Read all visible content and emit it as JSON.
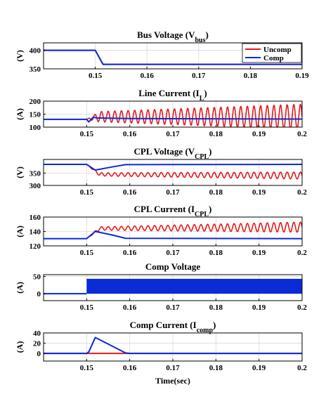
{
  "colors": {
    "uncomp": "#e31a1c",
    "comp": "#0a2bd6",
    "grid": "#d9d9d9",
    "axis": "#000000"
  },
  "xlabel": "Time(sec)",
  "legend": {
    "uncomp": "Uncomp",
    "comp": "Comp",
    "position": "top-right"
  },
  "chart_data": [
    {
      "type": "line",
      "title": "Bus Voltage (V",
      "title_sub": "bus",
      "title_end": ")",
      "ylabel": "(V)",
      "xlim": [
        0.14,
        0.19
      ],
      "ylim": [
        350,
        420
      ],
      "xticks": [
        "0.15",
        "0.16",
        "0.17",
        "0.18",
        "0.19"
      ],
      "xtick_values": [
        0.15,
        0.16,
        0.17,
        0.18,
        0.19
      ],
      "yticks": [
        "350",
        "400"
      ],
      "ytick_values": [
        350,
        400
      ],
      "grid": true,
      "legend": true,
      "series": [
        {
          "name": "Uncomp",
          "color": "uncomp",
          "points": [
            [
              0.14,
              400
            ],
            [
              0.15,
              400
            ],
            [
              0.1515,
              362
            ],
            [
              0.19,
              362
            ]
          ]
        },
        {
          "name": "Comp",
          "color": "comp",
          "points": [
            [
              0.14,
              400
            ],
            [
              0.15,
              400
            ],
            [
              0.1515,
              362
            ],
            [
              0.19,
              362
            ]
          ]
        }
      ]
    },
    {
      "type": "line",
      "title": "Line Current (I",
      "title_sub": "L",
      "title_end": ")",
      "ylabel": "(A)",
      "xlim": [
        0.14,
        0.2
      ],
      "ylim": [
        100,
        200
      ],
      "xticks": [
        "0.15",
        "0.16",
        "0.17",
        "0.18",
        "0.19",
        "0.2"
      ],
      "xtick_values": [
        0.15,
        0.16,
        0.17,
        0.18,
        0.19,
        0.2
      ],
      "yticks": [
        "100",
        "150",
        "200"
      ],
      "ytick_values": [
        100,
        150,
        200
      ],
      "grid": true,
      "series": [
        {
          "name": "Uncomp",
          "color": "uncomp",
          "osc": {
            "t0": 0.15,
            "steady": 130,
            "center_start": 140,
            "center_end": 140,
            "amp_start": 18,
            "amp_end": 48,
            "freq": 650
          }
        },
        {
          "name": "Comp",
          "color": "comp",
          "points": [
            [
              0.14,
              130
            ],
            [
              0.15,
              130
            ],
            [
              0.1505,
              120
            ],
            [
              0.1515,
              138
            ],
            [
              0.1525,
              135
            ],
            [
              0.16,
              133
            ],
            [
              0.2,
              131
            ]
          ]
        }
      ]
    },
    {
      "type": "line",
      "title": "CPL Voltage (V",
      "title_sub": "CPL",
      "title_end": ")",
      "ylabel": "(V)",
      "xlim": [
        0.14,
        0.2
      ],
      "ylim": [
        300,
        405
      ],
      "xticks": [
        "0.15",
        "0.16",
        "0.17",
        "0.18",
        "0.19",
        "0.2"
      ],
      "xtick_values": [
        0.15,
        0.16,
        0.17,
        0.18,
        0.19,
        0.2
      ],
      "yticks": [
        "300",
        "350"
      ],
      "ytick_values": [
        300,
        350
      ],
      "grid": true,
      "series": [
        {
          "name": "Uncomp",
          "color": "uncomp",
          "osc": {
            "t0": 0.15,
            "steady": 385,
            "center_start": 345,
            "center_end": 340,
            "amp_start": 6,
            "amp_end": 14,
            "freq": 650
          }
        },
        {
          "name": "Comp",
          "color": "comp",
          "points": [
            [
              0.14,
              385
            ],
            [
              0.15,
              385
            ],
            [
              0.152,
              362
            ],
            [
              0.156,
              375
            ],
            [
              0.159,
              384
            ],
            [
              0.2,
              385
            ]
          ]
        }
      ]
    },
    {
      "type": "line",
      "title": "CPL Current (I",
      "title_sub": "CPL",
      "title_end": ")",
      "ylabel": "(A)",
      "xlim": [
        0.14,
        0.2
      ],
      "ylim": [
        120,
        160
      ],
      "xticks": [
        "0.15",
        "0.16",
        "0.17",
        "0.18",
        "0.19",
        "0.2"
      ],
      "xtick_values": [
        0.15,
        0.16,
        0.17,
        0.18,
        0.19,
        0.2
      ],
      "yticks": [
        "120",
        "140",
        "160"
      ],
      "ytick_values": [
        120,
        140,
        160
      ],
      "grid": true,
      "series": [
        {
          "name": "Uncomp",
          "color": "uncomp",
          "osc": {
            "t0": 0.15,
            "steady": 130,
            "center_start": 144,
            "center_end": 146,
            "amp_start": 2,
            "amp_end": 7,
            "freq": 650
          }
        },
        {
          "name": "Comp",
          "color": "comp",
          "points": [
            [
              0.14,
              130
            ],
            [
              0.15,
              130
            ],
            [
              0.152,
              140
            ],
            [
              0.156,
              135
            ],
            [
              0.159,
              130.5
            ],
            [
              0.2,
              130
            ]
          ]
        }
      ]
    },
    {
      "type": "line",
      "title": "Comp Voltage",
      "title_sub": "",
      "title_end": "",
      "ylabel": "(A)",
      "xlim": [
        0.14,
        0.2
      ],
      "ylim": [
        -20,
        55
      ],
      "xticks": [
        "0.15",
        "0.16",
        "0.17",
        "0.18",
        "0.19",
        "0.2"
      ],
      "xtick_values": [
        0.15,
        0.16,
        0.17,
        0.18,
        0.19,
        0.2
      ],
      "yticks": [
        "0",
        "50"
      ],
      "ytick_values": [
        0,
        50
      ],
      "grid": true,
      "series": [
        {
          "name": "Comp",
          "color": "comp",
          "points": [
            [
              0.14,
              0
            ],
            [
              0.15,
              0
            ]
          ],
          "band": {
            "t0": 0.15,
            "t1": 0.2,
            "low": 0,
            "high": 43
          }
        }
      ]
    },
    {
      "type": "line",
      "title": "Comp Current (I",
      "title_sub": "comp",
      "title_end": ")",
      "ylabel": "(A)",
      "xlim": [
        0.14,
        0.2
      ],
      "ylim": [
        -15,
        40
      ],
      "xticks": [
        "0.15",
        "0.16",
        "0.17",
        "0.18",
        "0.19",
        "0.2"
      ],
      "xtick_values": [
        0.15,
        0.16,
        0.17,
        0.18,
        0.19,
        0.2
      ],
      "yticks": [
        "0",
        "20",
        "40"
      ],
      "ytick_values": [
        0,
        20,
        40
      ],
      "grid": true,
      "xlabel_shown": true,
      "series": [
        {
          "name": "Uncomp",
          "color": "uncomp",
          "points": [
            [
              0.14,
              0
            ],
            [
              0.2,
              0
            ]
          ]
        },
        {
          "name": "Comp",
          "color": "comp",
          "points": [
            [
              0.14,
              0
            ],
            [
              0.15,
              0
            ],
            [
              0.1505,
              3
            ],
            [
              0.152,
              31
            ],
            [
              0.1525,
              29
            ],
            [
              0.159,
              1
            ],
            [
              0.16,
              0
            ],
            [
              0.2,
              0
            ]
          ]
        }
      ]
    }
  ]
}
